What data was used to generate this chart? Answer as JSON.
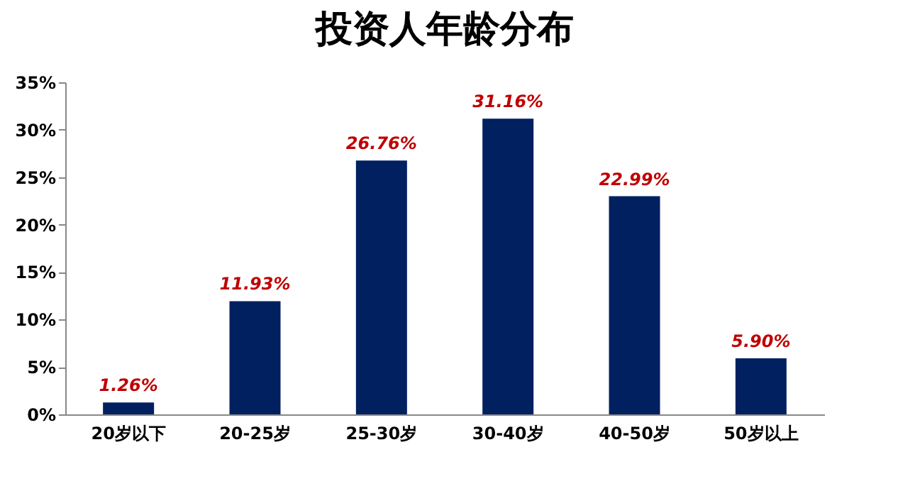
{
  "chart_data": {
    "type": "bar",
    "title": "投资人年龄分布",
    "categories": [
      "20岁以下",
      "20-25岁",
      "25-30岁",
      "30-40岁",
      "40-50岁",
      "50岁以上"
    ],
    "values": [
      1.26,
      11.93,
      26.76,
      31.16,
      22.99,
      5.9
    ],
    "value_labels": [
      "1.26%",
      "11.93%",
      "26.76%",
      "31.16%",
      "22.99%",
      "5.90%"
    ],
    "color": "#002060",
    "ylim": [
      0,
      35
    ],
    "yticks": [
      {
        "value": 0,
        "label": "0%"
      },
      {
        "value": 5,
        "label": "5%"
      },
      {
        "value": 10,
        "label": "10%"
      },
      {
        "value": 15,
        "label": "15%"
      },
      {
        "value": 20,
        "label": "20%"
      },
      {
        "value": 25,
        "label": "25%"
      },
      {
        "value": 30,
        "label": "30%"
      },
      {
        "value": 35,
        "label": "35%"
      }
    ],
    "grid": false
  }
}
